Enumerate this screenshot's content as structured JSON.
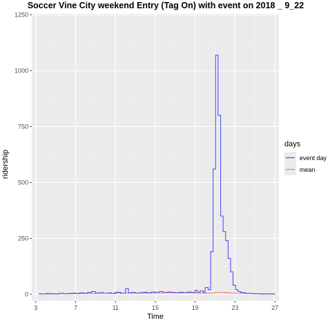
{
  "chart_data": {
    "type": "line",
    "title": "Soccer Vine City weekend Entry (Tag On) with event on 2018 _ 9_22",
    "xlabel": "Time",
    "ylabel": "ridership",
    "xlim": [
      2.6,
      27.4
    ],
    "ylim": [
      -30,
      1255
    ],
    "x_ticks": [
      3,
      7,
      11,
      15,
      19,
      23,
      27
    ],
    "y_ticks": [
      0,
      250,
      500,
      750,
      1000,
      1250
    ],
    "grid": true,
    "step": true,
    "legend": {
      "title": "days",
      "position": "right",
      "entries": [
        "event day",
        "mean"
      ]
    },
    "series": [
      {
        "name": "event day",
        "color": "#4f4fff",
        "x": [
          3.3,
          3.6,
          4.0,
          4.5,
          5.0,
          5.3,
          5.8,
          6.2,
          6.6,
          7.0,
          7.4,
          7.8,
          8.2,
          8.6,
          9.0,
          9.4,
          9.8,
          10.2,
          10.6,
          11.0,
          11.5,
          12.0,
          12.3,
          12.6,
          13.0,
          13.4,
          13.8,
          14.2,
          14.6,
          15.0,
          15.4,
          15.8,
          16.2,
          16.6,
          17.0,
          17.4,
          17.8,
          18.2,
          18.6,
          19.0,
          19.2,
          19.5,
          19.8,
          20.0,
          20.3,
          20.55,
          20.8,
          21.05,
          21.3,
          21.55,
          21.8,
          22.05,
          22.3,
          22.55,
          22.8,
          23.05,
          23.3,
          23.55,
          23.8,
          24.1,
          24.4,
          24.8,
          25.2,
          25.6,
          26.0,
          26.4,
          27.0
        ],
        "values": [
          2,
          1,
          3,
          2,
          1,
          4,
          2,
          3,
          5,
          3,
          6,
          4,
          8,
          12,
          5,
          7,
          4,
          6,
          3,
          9,
          4,
          25,
          6,
          8,
          5,
          7,
          9,
          6,
          10,
          8,
          12,
          7,
          10,
          8,
          6,
          9,
          7,
          10,
          8,
          18,
          10,
          15,
          8,
          30,
          20,
          190,
          560,
          1070,
          800,
          350,
          280,
          240,
          160,
          100,
          40,
          20,
          12,
          8,
          6,
          4,
          3,
          2,
          2,
          1,
          1,
          1,
          1
        ]
      },
      {
        "name": "mean",
        "color": "#f8766d",
        "x": [
          3.3,
          5.0,
          7.0,
          9.0,
          11.0,
          13.0,
          15.0,
          17.0,
          19.0,
          20.0,
          21.0,
          21.5,
          22.0,
          22.5,
          23.0,
          24.0,
          25.0,
          27.0
        ],
        "values": [
          1,
          2,
          3,
          4,
          5,
          5,
          6,
          6,
          5,
          5,
          7,
          8,
          6,
          5,
          4,
          3,
          2,
          1
        ]
      }
    ]
  }
}
